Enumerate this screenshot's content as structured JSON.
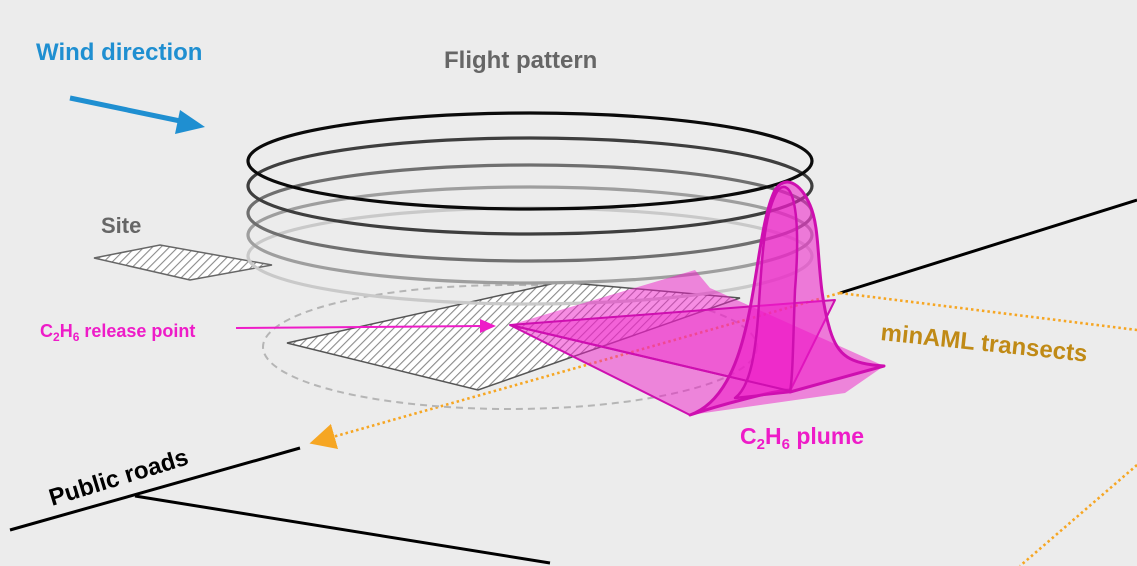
{
  "labels": {
    "wind_direction": "Wind direction",
    "flight_pattern": "Flight pattern",
    "site": "Site",
    "release_point": {
      "pre": "C",
      "sub1": "2",
      "mid": "H",
      "sub2": "6",
      "post": " release point"
    },
    "plume": {
      "pre": "C",
      "sub1": "2",
      "mid": "H",
      "sub2": "6",
      "post": " plume"
    },
    "transects": "minAML transects",
    "roads": "Public roads"
  },
  "colors": {
    "background": "#ececec",
    "wind": "#1f8fd1",
    "flight_label": "#666666",
    "site_label": "#666666",
    "plume": "#ee1cc8",
    "transect": "#f6a623",
    "transect_label": "#c08a16",
    "road": "#000000"
  },
  "icons": {
    "wind_arrow": "arrow-right-down-icon",
    "transect_arrow": "arrow-left-icon"
  }
}
